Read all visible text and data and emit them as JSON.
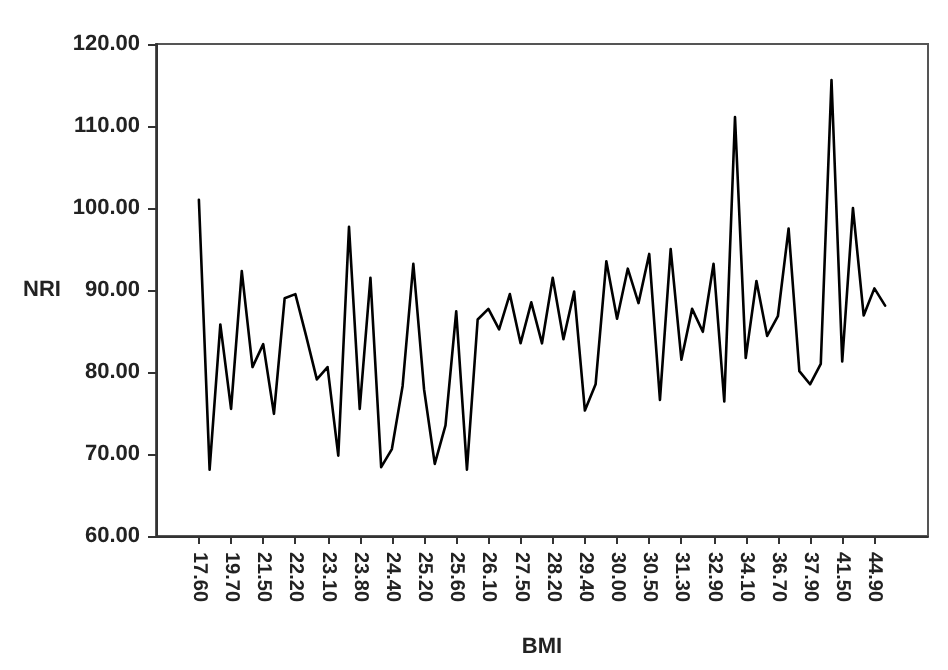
{
  "chart_data": {
    "type": "line",
    "xlabel": "BMI",
    "ylabel": "NRI",
    "categories": [
      "17.60",
      null,
      null,
      "19.70",
      null,
      null,
      "21.50",
      null,
      null,
      "22.20",
      null,
      null,
      "23.10",
      null,
      null,
      "23.80",
      null,
      null,
      "24.40",
      null,
      null,
      "25.20",
      null,
      null,
      "25.60",
      null,
      null,
      "26.10",
      null,
      null,
      "27.50",
      null,
      null,
      "28.20",
      null,
      null,
      "29.40",
      null,
      null,
      "30.00",
      null,
      null,
      "30.50",
      null,
      null,
      "31.30",
      null,
      null,
      "32.90",
      null,
      null,
      "34.10",
      null,
      null,
      "36.70",
      null,
      null,
      "37.90",
      null,
      null,
      "41.50",
      null,
      null,
      "44.90",
      null
    ],
    "series": [
      {
        "color": "#000000",
        "values": [
          101.0,
          68.1,
          85.8,
          75.5,
          92.3,
          80.6,
          83.4,
          74.9,
          89.0,
          89.5,
          84.4,
          79.1,
          80.6,
          69.8,
          97.7,
          75.5,
          91.5,
          68.4,
          70.6,
          78.3,
          93.2,
          77.9,
          68.8,
          73.5,
          87.4,
          68.1,
          86.4,
          87.7,
          85.2,
          89.5,
          83.5,
          88.5,
          83.5,
          91.5,
          84.0,
          89.8,
          75.3,
          78.5,
          93.5,
          86.5,
          92.6,
          88.4,
          94.4,
          76.6,
          95.0,
          81.5,
          87.7,
          84.9,
          93.2,
          76.4,
          111.1,
          81.7,
          91.1,
          84.4,
          86.8,
          97.5,
          80.1,
          78.5,
          81.0,
          115.6,
          81.3,
          100.0,
          86.9,
          90.2,
          88.1
        ]
      }
    ],
    "ylim": [
      60,
      120
    ],
    "yticks": [
      {
        "value": 60,
        "label": "60.00"
      },
      {
        "value": 70,
        "label": "70.00"
      },
      {
        "value": 80,
        "label": "80.00"
      },
      {
        "value": 90,
        "label": "90.00"
      },
      {
        "value": 100,
        "label": "100.00"
      },
      {
        "value": 110,
        "label": "110.00"
      },
      {
        "value": 120,
        "label": "120.00"
      }
    ],
    "grid": false,
    "marker": "none",
    "line_style": "solid"
  }
}
